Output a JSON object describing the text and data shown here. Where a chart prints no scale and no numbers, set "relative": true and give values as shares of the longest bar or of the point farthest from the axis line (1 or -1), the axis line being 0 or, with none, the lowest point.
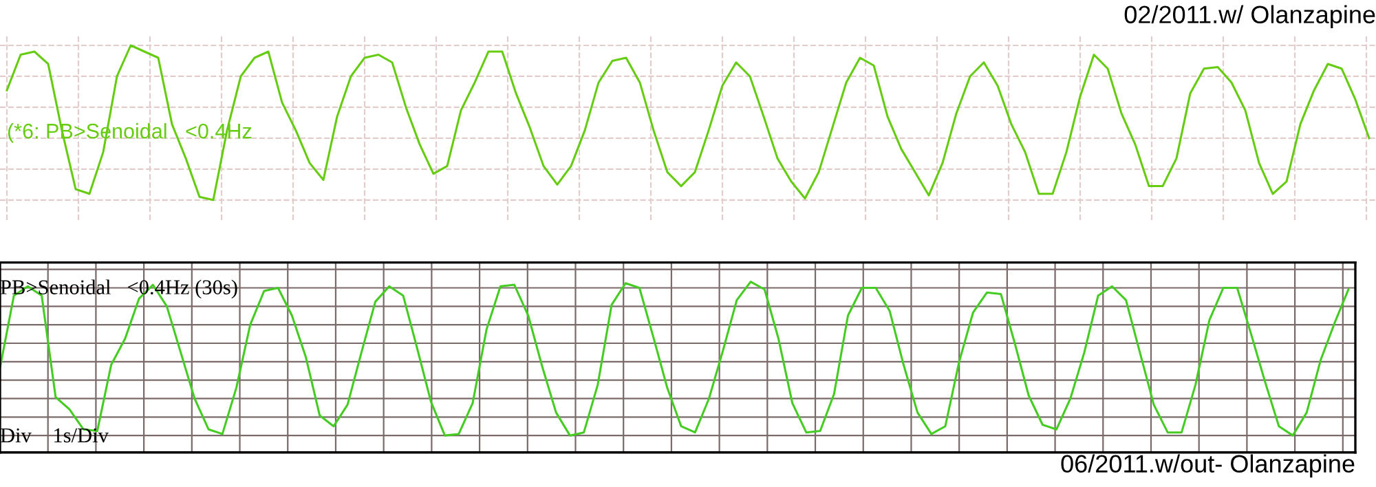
{
  "chart_data": [
    {
      "type": "line",
      "title": "02/2011.w/ Olanzapine",
      "annotations": [
        "(*6: PB>Senoidal   <0.4Hz"
      ],
      "relative": true,
      "grid": true,
      "tick_labels": false,
      "legend": false,
      "categories": [
        null,
        null,
        null,
        null,
        null,
        null,
        null,
        null,
        null,
        null,
        null,
        null,
        null,
        null,
        null,
        null,
        null,
        null,
        null,
        null,
        null,
        null,
        null,
        null,
        null,
        null,
        null,
        null,
        null,
        null,
        null,
        null,
        null,
        null,
        null,
        null,
        null,
        null,
        null,
        null,
        null,
        null,
        null,
        null,
        null,
        null,
        null,
        null,
        null,
        null,
        null,
        null,
        null,
        null,
        null,
        null,
        null,
        null,
        null,
        null,
        null,
        null,
        null,
        null,
        null,
        null,
        null,
        null,
        null,
        null,
        null,
        null,
        null,
        null,
        null,
        null,
        null,
        null,
        null,
        null,
        null,
        null,
        null,
        null,
        null,
        null,
        null,
        null,
        null,
        null,
        null,
        null,
        null,
        null,
        null,
        null,
        null,
        null,
        null,
        null
      ],
      "series": [
        {
          "color": "#66cc11",
          "values": [
            0.71,
            0.94,
            0.96,
            0.88,
            0.45,
            0.07,
            0.04,
            0.31,
            0.8,
            1.0,
            0.96,
            0.92,
            0.49,
            0.27,
            0.02,
            0.0,
            0.45,
            0.8,
            0.92,
            0.96,
            0.63,
            0.45,
            0.24,
            0.13,
            0.54,
            0.8,
            0.92,
            0.94,
            0.89,
            0.6,
            0.36,
            0.17,
            0.22,
            0.58,
            0.76,
            0.96,
            0.96,
            0.69,
            0.47,
            0.22,
            0.1,
            0.22,
            0.45,
            0.76,
            0.9,
            0.92,
            0.76,
            0.45,
            0.18,
            0.09,
            0.18,
            0.45,
            0.74,
            0.89,
            0.8,
            0.54,
            0.27,
            0.12,
            0.01,
            0.18,
            0.47,
            0.76,
            0.92,
            0.87,
            0.54,
            0.33,
            0.18,
            0.03,
            0.24,
            0.56,
            0.8,
            0.89,
            0.74,
            0.49,
            0.31,
            0.04,
            0.04,
            0.31,
            0.67,
            0.94,
            0.85,
            0.56,
            0.36,
            0.09,
            0.09,
            0.27,
            0.69,
            0.85,
            0.86,
            0.76,
            0.58,
            0.24,
            0.04,
            0.12,
            0.49,
            0.71,
            0.88,
            0.85,
            0.65,
            0.4
          ]
        }
      ]
    },
    {
      "type": "line",
      "xlabel": "06/2011.w/out- Olanzapine",
      "annotations": [
        "PB>Senoidal   <0.4Hz (30s)",
        "Div    1s/Div"
      ],
      "relative": true,
      "grid": true,
      "tick_labels": false,
      "legend": false,
      "categories": [
        null,
        null,
        null,
        null,
        null,
        null,
        null,
        null,
        null,
        null,
        null,
        null,
        null,
        null,
        null,
        null,
        null,
        null,
        null,
        null,
        null,
        null,
        null,
        null,
        null,
        null,
        null,
        null,
        null,
        null,
        null,
        null,
        null,
        null,
        null,
        null,
        null,
        null,
        null,
        null,
        null,
        null,
        null,
        null,
        null,
        null,
        null,
        null,
        null,
        null,
        null,
        null,
        null,
        null,
        null,
        null,
        null,
        null,
        null,
        null,
        null,
        null,
        null,
        null,
        null,
        null,
        null,
        null,
        null,
        null,
        null,
        null,
        null,
        null,
        null,
        null,
        null,
        null,
        null,
        null,
        null,
        null,
        null,
        null,
        null,
        null,
        null,
        null,
        null,
        null,
        null,
        null,
        null,
        null,
        null,
        null,
        null,
        null
      ],
      "series": [
        {
          "color": "#44cc22",
          "values": [
            0.44,
            0.91,
            0.97,
            0.91,
            0.25,
            0.17,
            0.04,
            0.03,
            0.46,
            0.63,
            0.89,
            0.98,
            0.84,
            0.54,
            0.24,
            0.04,
            0.01,
            0.31,
            0.72,
            0.94,
            0.96,
            0.78,
            0.51,
            0.13,
            0.06,
            0.2,
            0.54,
            0.87,
            0.97,
            0.91,
            0.57,
            0.22,
            0.0,
            0.01,
            0.21,
            0.69,
            0.97,
            0.98,
            0.78,
            0.45,
            0.15,
            0.0,
            0.02,
            0.33,
            0.85,
            0.99,
            0.96,
            0.64,
            0.31,
            0.06,
            0.02,
            0.24,
            0.55,
            0.88,
            1.0,
            0.95,
            0.63,
            0.21,
            0.02,
            0.03,
            0.27,
            0.78,
            0.96,
            0.96,
            0.81,
            0.46,
            0.15,
            0.01,
            0.06,
            0.48,
            0.8,
            0.93,
            0.92,
            0.6,
            0.26,
            0.07,
            0.04,
            0.24,
            0.54,
            0.91,
            0.97,
            0.88,
            0.54,
            0.2,
            0.02,
            0.02,
            0.33,
            0.75,
            0.96,
            0.96,
            0.66,
            0.35,
            0.06,
            0.0,
            0.15,
            0.49,
            0.73,
            0.95
          ]
        }
      ]
    }
  ]
}
